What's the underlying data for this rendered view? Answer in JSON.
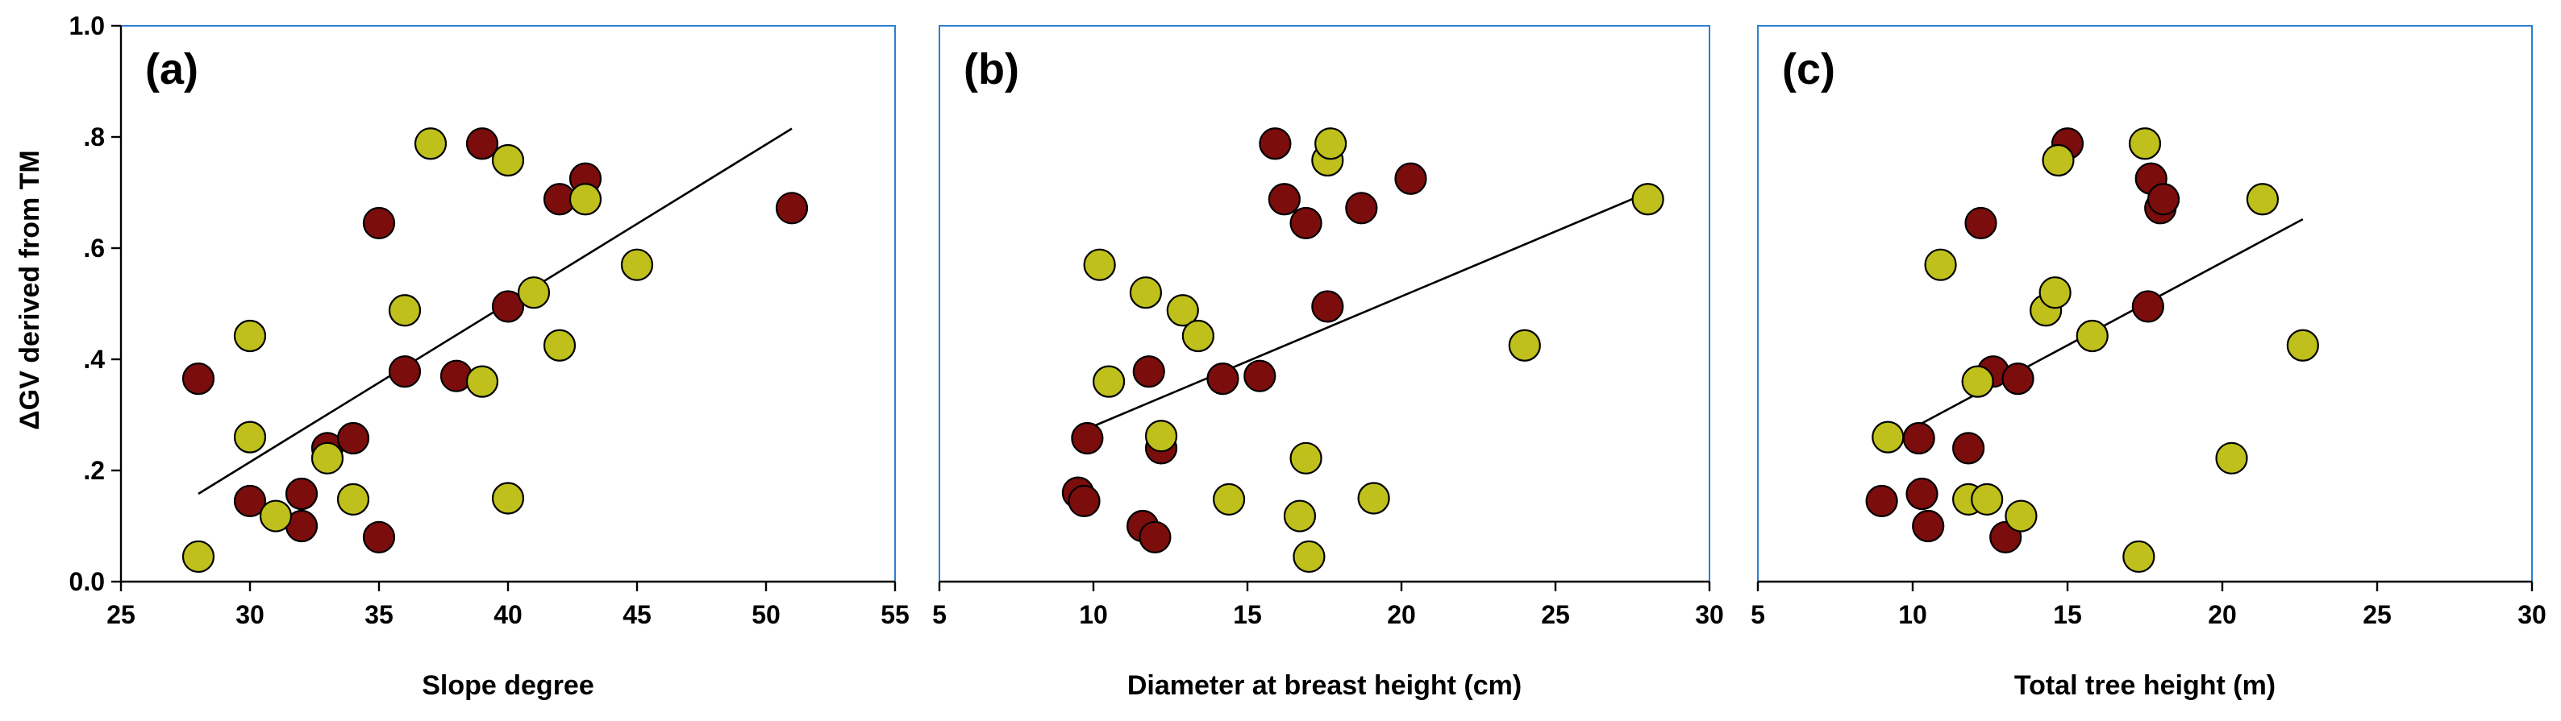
{
  "chart_data": [
    {
      "type": "scatter",
      "panel_label": "(a)",
      "xlabel": "Slope degree",
      "ylabel": "ΔGV derived from TM",
      "xlim": [
        25,
        55
      ],
      "ylim": [
        0,
        1
      ],
      "x_ticks": [
        25,
        30,
        35,
        40,
        45,
        50,
        55
      ],
      "y_ticks": [
        0,
        0.2,
        0.4,
        0.6,
        0.8,
        1.0
      ],
      "y_tick_labels": [
        "0.0",
        ".2",
        ".4",
        ".6",
        ".8",
        "1.0"
      ],
      "x_tick_labels": [
        "25",
        "30",
        "35",
        "40",
        "45",
        "50",
        "55"
      ],
      "grid": false,
      "colors": {
        "series_1": "#7b0d0d",
        "series_2": "#bfc01c"
      },
      "series": [
        {
          "color": "#7b0d0d",
          "points": [
            [
              28,
              0.365
            ],
            [
              30,
              0.145
            ],
            [
              32,
              0.1
            ],
            [
              32,
              0.158
            ],
            [
              33,
              0.24
            ],
            [
              34,
              0.258
            ],
            [
              35,
              0.08
            ],
            [
              35,
              0.645
            ],
            [
              36,
              0.378
            ],
            [
              38,
              0.37
            ],
            [
              39,
              0.788
            ],
            [
              40,
              0.495
            ],
            [
              42,
              0.688
            ],
            [
              43,
              0.725
            ],
            [
              51,
              0.672
            ]
          ]
        },
        {
          "color": "#bfc01c",
          "points": [
            [
              28,
              0.045
            ],
            [
              30,
              0.26
            ],
            [
              30,
              0.442
            ],
            [
              31,
              0.118
            ],
            [
              33,
              0.222
            ],
            [
              34,
              0.148
            ],
            [
              36,
              0.488
            ],
            [
              37,
              0.788
            ],
            [
              39,
              0.36
            ],
            [
              40,
              0.15
            ],
            [
              40,
              0.758
            ],
            [
              41,
              0.52
            ],
            [
              42,
              0.425
            ],
            [
              43,
              0.688
            ],
            [
              45,
              0.57
            ]
          ]
        }
      ],
      "trendline": [
        [
          28,
          0.158
        ],
        [
          51,
          0.815
        ]
      ]
    },
    {
      "type": "scatter",
      "panel_label": "(b)",
      "xlabel": "Diameter at breast height (cm)",
      "ylabel": "",
      "xlim": [
        5,
        30
      ],
      "ylim": [
        0,
        1
      ],
      "x_ticks": [
        5,
        10,
        15,
        20,
        25,
        30
      ],
      "x_tick_labels": [
        "5",
        "10",
        "15",
        "20",
        "25",
        "30"
      ],
      "grid": false,
      "colors": {
        "series_1": "#7b0d0d",
        "series_2": "#bfc01c"
      },
      "series": [
        {
          "color": "#7b0d0d",
          "points": [
            [
              9.5,
              0.16
            ],
            [
              9.7,
              0.145
            ],
            [
              9.8,
              0.258
            ],
            [
              11.6,
              0.1
            ],
            [
              11.8,
              0.378
            ],
            [
              12.0,
              0.08
            ],
            [
              12.2,
              0.24
            ],
            [
              14.2,
              0.365
            ],
            [
              15.4,
              0.37
            ],
            [
              15.9,
              0.788
            ],
            [
              16.2,
              0.688
            ],
            [
              16.9,
              0.645
            ],
            [
              17.6,
              0.495
            ],
            [
              18.7,
              0.672
            ],
            [
              20.3,
              0.725
            ]
          ]
        },
        {
          "color": "#bfc01c",
          "points": [
            [
              10.2,
              0.57
            ],
            [
              10.5,
              0.36
            ],
            [
              11.7,
              0.52
            ],
            [
              12.2,
              0.262
            ],
            [
              12.9,
              0.488
            ],
            [
              13.4,
              0.442
            ],
            [
              14.4,
              0.148
            ],
            [
              16.7,
              0.118
            ],
            [
              16.9,
              0.222
            ],
            [
              17.0,
              0.045
            ],
            [
              17.6,
              0.758
            ],
            [
              17.7,
              0.788
            ],
            [
              19.1,
              0.15
            ],
            [
              24.0,
              0.425
            ],
            [
              28.0,
              0.688
            ]
          ]
        }
      ],
      "trendline": [
        [
          9.8,
          0.275
        ],
        [
          28.0,
          0.7
        ]
      ]
    },
    {
      "type": "scatter",
      "panel_label": "(c)",
      "xlabel": "Total tree height (m)",
      "ylabel": "",
      "xlim": [
        5,
        30
      ],
      "ylim": [
        0,
        1
      ],
      "x_ticks": [
        5,
        10,
        15,
        20,
        25,
        30
      ],
      "x_tick_labels": [
        "5",
        "10",
        "15",
        "20",
        "25",
        "30"
      ],
      "grid": false,
      "colors": {
        "series_1": "#7b0d0d",
        "series_2": "#bfc01c"
      },
      "series": [
        {
          "color": "#7b0d0d",
          "points": [
            [
              9.0,
              0.145
            ],
            [
              10.2,
              0.258
            ],
            [
              10.3,
              0.158
            ],
            [
              10.5,
              0.1
            ],
            [
              11.8,
              0.24
            ],
            [
              12.2,
              0.645
            ],
            [
              12.6,
              0.378
            ],
            [
              13.0,
              0.08
            ],
            [
              13.4,
              0.365
            ],
            [
              15.0,
              0.788
            ],
            [
              17.6,
              0.495
            ],
            [
              17.7,
              0.725
            ],
            [
              18.0,
              0.672
            ],
            [
              18.1,
              0.688
            ]
          ]
        },
        {
          "color": "#bfc01c",
          "points": [
            [
              9.2,
              0.26
            ],
            [
              10.9,
              0.57
            ],
            [
              11.8,
              0.148
            ],
            [
              12.1,
              0.36
            ],
            [
              12.4,
              0.148
            ],
            [
              13.5,
              0.118
            ],
            [
              14.3,
              0.488
            ],
            [
              14.6,
              0.52
            ],
            [
              14.7,
              0.758
            ],
            [
              15.8,
              0.442
            ],
            [
              17.3,
              0.045
            ],
            [
              17.5,
              0.788
            ],
            [
              20.3,
              0.222
            ],
            [
              21.3,
              0.688
            ],
            [
              22.6,
              0.425
            ]
          ]
        }
      ],
      "trendline": [
        [
          9.8,
          0.27
        ],
        [
          22.6,
          0.652
        ]
      ]
    }
  ]
}
